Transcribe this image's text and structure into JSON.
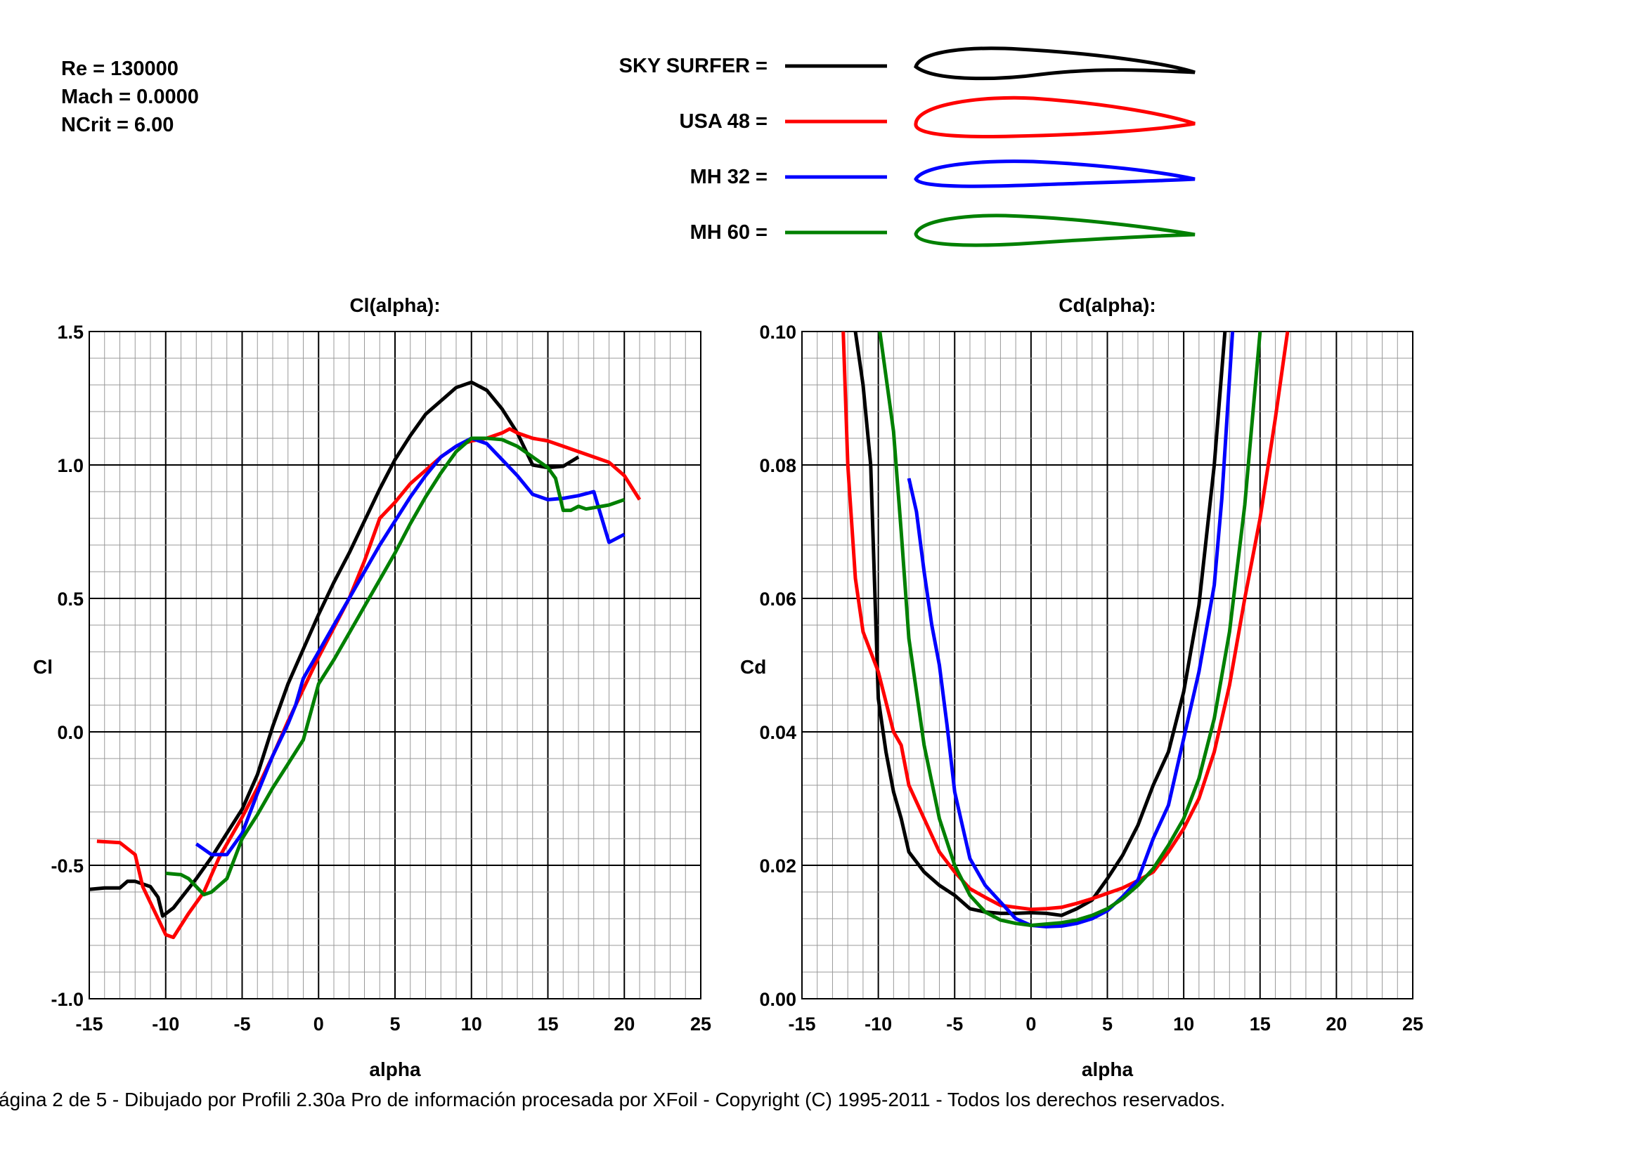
{
  "params": {
    "re": "Re = 130000",
    "mach": "Mach = 0.0000",
    "ncrit": "NCrit = 6.00"
  },
  "legend": [
    {
      "label": "SKY SURFER =",
      "color": "#000000"
    },
    {
      "label": "USA 48 =",
      "color": "#ff0000"
    },
    {
      "label": "MH 32 =",
      "color": "#0000ff"
    },
    {
      "label": "MH 60 =",
      "color": "#008000"
    }
  ],
  "footer": "ágina 2 de 5 - Dibujado por Profili 2.30a Pro de información procesada por XFoil - Copyright (C) 1995-2011 - Todos los derechos reservados.",
  "chart_data": [
    {
      "type": "line",
      "title": "Cl(alpha):",
      "xlabel": "alpha",
      "ylabel": "Cl",
      "xlim": [
        -15,
        25
      ],
      "ylim": [
        -1.0,
        1.5
      ],
      "xticks": [
        "-15",
        "-10",
        "-5",
        "0",
        "5",
        "10",
        "15",
        "20",
        "25"
      ],
      "yticks": [
        "-1.0",
        "-0.5",
        "0.0",
        "0.5",
        "1.0",
        "1.5"
      ],
      "grid": true,
      "series": [
        {
          "name": "SKY SURFER",
          "color": "#000000",
          "points": [
            [
              -15,
              -0.59
            ],
            [
              -14,
              -0.585
            ],
            [
              -13,
              -0.585
            ],
            [
              -12.5,
              -0.56
            ],
            [
              -12,
              -0.56
            ],
            [
              -11,
              -0.58
            ],
            [
              -10.5,
              -0.62
            ],
            [
              -10.2,
              -0.69
            ],
            [
              -9.5,
              -0.66
            ],
            [
              -8,
              -0.55
            ],
            [
              -7,
              -0.47
            ],
            [
              -6,
              -0.38
            ],
            [
              -5,
              -0.29
            ],
            [
              -4,
              -0.16
            ],
            [
              -3,
              0.02
            ],
            [
              -2,
              0.18
            ],
            [
              -1,
              0.31
            ],
            [
              0,
              0.44
            ],
            [
              1,
              0.56
            ],
            [
              2,
              0.67
            ],
            [
              3,
              0.79
            ],
            [
              4,
              0.91
            ],
            [
              5,
              1.02
            ],
            [
              6,
              1.11
            ],
            [
              7,
              1.19
            ],
            [
              8,
              1.24
            ],
            [
              9,
              1.29
            ],
            [
              10,
              1.31
            ],
            [
              11,
              1.28
            ],
            [
              12,
              1.21
            ],
            [
              13,
              1.12
            ],
            [
              14,
              1.0
            ],
            [
              15,
              0.99
            ],
            [
              16,
              0.995
            ],
            [
              17,
              1.03
            ]
          ]
        },
        {
          "name": "USA 48",
          "color": "#ff0000",
          "points": [
            [
              -14.5,
              -0.41
            ],
            [
              -13,
              -0.415
            ],
            [
              -12,
              -0.46
            ],
            [
              -11.5,
              -0.58
            ],
            [
              -10.5,
              -0.7
            ],
            [
              -10,
              -0.76
            ],
            [
              -9.5,
              -0.77
            ],
            [
              -8.5,
              -0.68
            ],
            [
              -7.5,
              -0.6
            ],
            [
              -6.5,
              -0.47
            ],
            [
              -5.5,
              -0.37
            ],
            [
              -5,
              -0.32
            ],
            [
              -4,
              -0.21
            ],
            [
              -3,
              -0.09
            ],
            [
              -2,
              0.04
            ],
            [
              -1,
              0.16
            ],
            [
              0,
              0.28
            ],
            [
              1,
              0.39
            ],
            [
              2,
              0.5
            ],
            [
              3,
              0.64
            ],
            [
              4,
              0.8
            ],
            [
              5,
              0.86
            ],
            [
              6,
              0.93
            ],
            [
              7,
              0.98
            ],
            [
              8,
              1.03
            ],
            [
              9,
              1.07
            ],
            [
              10,
              1.09
            ],
            [
              11,
              1.1
            ],
            [
              12,
              1.12
            ],
            [
              12.5,
              1.135
            ],
            [
              13,
              1.12
            ],
            [
              14,
              1.1
            ],
            [
              15,
              1.09
            ],
            [
              16,
              1.07
            ],
            [
              17,
              1.05
            ],
            [
              18,
              1.03
            ],
            [
              19,
              1.01
            ],
            [
              20,
              0.96
            ],
            [
              21,
              0.87
            ]
          ]
        },
        {
          "name": "MH 32",
          "color": "#0000ff",
          "points": [
            [
              -8,
              -0.42
            ],
            [
              -7,
              -0.46
            ],
            [
              -6,
              -0.46
            ],
            [
              -5,
              -0.38
            ],
            [
              -4,
              -0.23
            ],
            [
              -3,
              -0.09
            ],
            [
              -2,
              0.03
            ],
            [
              -1.5,
              0.1
            ],
            [
              -1,
              0.2
            ],
            [
              0,
              0.3
            ],
            [
              1,
              0.4
            ],
            [
              2,
              0.5
            ],
            [
              3,
              0.6
            ],
            [
              4,
              0.7
            ],
            [
              5,
              0.79
            ],
            [
              6,
              0.88
            ],
            [
              7,
              0.96
            ],
            [
              8,
              1.03
            ],
            [
              9,
              1.07
            ],
            [
              10,
              1.1
            ],
            [
              11,
              1.08
            ],
            [
              12,
              1.02
            ],
            [
              13,
              0.96
            ],
            [
              14,
              0.89
            ],
            [
              15,
              0.87
            ],
            [
              16,
              0.875
            ],
            [
              17,
              0.885
            ],
            [
              18,
              0.9
            ],
            [
              19,
              0.71
            ],
            [
              20,
              0.74
            ]
          ]
        },
        {
          "name": "MH 60",
          "color": "#008000",
          "points": [
            [
              -10,
              -0.53
            ],
            [
              -9,
              -0.535
            ],
            [
              -8.5,
              -0.55
            ],
            [
              -7.5,
              -0.61
            ],
            [
              -7,
              -0.6
            ],
            [
              -6,
              -0.55
            ],
            [
              -5,
              -0.4
            ],
            [
              -4,
              -0.31
            ],
            [
              -3,
              -0.21
            ],
            [
              -2,
              -0.12
            ],
            [
              -1,
              -0.03
            ],
            [
              0,
              0.18
            ],
            [
              1,
              0.27
            ],
            [
              2,
              0.37
            ],
            [
              3,
              0.47
            ],
            [
              4,
              0.57
            ],
            [
              5,
              0.67
            ],
            [
              6,
              0.78
            ],
            [
              7,
              0.88
            ],
            [
              8,
              0.97
            ],
            [
              9,
              1.05
            ],
            [
              10,
              1.1
            ],
            [
              11,
              1.1
            ],
            [
              12,
              1.095
            ],
            [
              13,
              1.07
            ],
            [
              14,
              1.03
            ],
            [
              15,
              0.99
            ],
            [
              15.5,
              0.95
            ],
            [
              16,
              0.83
            ],
            [
              16.5,
              0.83
            ],
            [
              17,
              0.845
            ],
            [
              17.5,
              0.835
            ],
            [
              18,
              0.84
            ],
            [
              19,
              0.85
            ],
            [
              20,
              0.87
            ]
          ]
        }
      ]
    },
    {
      "type": "line",
      "title": "Cd(alpha):",
      "xlabel": "alpha",
      "ylabel": "Cd",
      "xlim": [
        -15,
        25
      ],
      "ylim": [
        0.0,
        0.1
      ],
      "xticks": [
        "-15",
        "-10",
        "-5",
        "0",
        "5",
        "10",
        "15",
        "20",
        "25"
      ],
      "yticks": [
        "0.00",
        "0.02",
        "0.04",
        "0.06",
        "0.08",
        "0.10"
      ],
      "grid": true,
      "series": [
        {
          "name": "SKY SURFER",
          "color": "#000000",
          "points": [
            [
              -11.5,
              0.1
            ],
            [
              -11,
              0.092
            ],
            [
              -10.5,
              0.08
            ],
            [
              -10,
              0.045
            ],
            [
              -9.5,
              0.037
            ],
            [
              -9,
              0.031
            ],
            [
              -8.5,
              0.027
            ],
            [
              -8,
              0.022
            ],
            [
              -7,
              0.019
            ],
            [
              -6,
              0.017
            ],
            [
              -5,
              0.0155
            ],
            [
              -4,
              0.0135
            ],
            [
              -3,
              0.013
            ],
            [
              -2,
              0.0128
            ],
            [
              -1,
              0.0128
            ],
            [
              0,
              0.0129
            ],
            [
              1,
              0.0128
            ],
            [
              2,
              0.0125
            ],
            [
              3,
              0.0135
            ],
            [
              4,
              0.0148
            ],
            [
              5,
              0.018
            ],
            [
              6,
              0.0215
            ],
            [
              7,
              0.026
            ],
            [
              8,
              0.032
            ],
            [
              9,
              0.037
            ],
            [
              10,
              0.046
            ],
            [
              11,
              0.059
            ],
            [
              12,
              0.08
            ],
            [
              12.7,
              0.1
            ]
          ]
        },
        {
          "name": "USA 48",
          "color": "#ff0000",
          "points": [
            [
              -12.3,
              0.1
            ],
            [
              -12,
              0.08
            ],
            [
              -11.5,
              0.063
            ],
            [
              -11,
              0.055
            ],
            [
              -10,
              0.049
            ],
            [
              -9,
              0.04
            ],
            [
              -8.5,
              0.038
            ],
            [
              -8,
              0.032
            ],
            [
              -7,
              0.027
            ],
            [
              -6,
              0.022
            ],
            [
              -5,
              0.019
            ],
            [
              -4,
              0.0165
            ],
            [
              -3,
              0.0152
            ],
            [
              -2,
              0.014
            ],
            [
              -1,
              0.0137
            ],
            [
              0,
              0.0134
            ],
            [
              1,
              0.0135
            ],
            [
              2,
              0.0137
            ],
            [
              3,
              0.0143
            ],
            [
              4,
              0.015
            ],
            [
              5,
              0.0158
            ],
            [
              6,
              0.0166
            ],
            [
              7,
              0.0177
            ],
            [
              8,
              0.019
            ],
            [
              9,
              0.022
            ],
            [
              10,
              0.0255
            ],
            [
              11,
              0.03
            ],
            [
              12,
              0.037
            ],
            [
              13,
              0.047
            ],
            [
              14,
              0.06
            ],
            [
              15,
              0.072
            ],
            [
              16,
              0.087
            ],
            [
              16.8,
              0.1
            ]
          ]
        },
        {
          "name": "MH 32",
          "color": "#0000ff",
          "points": [
            [
              -8,
              0.078
            ],
            [
              -7.5,
              0.073
            ],
            [
              -7,
              0.064
            ],
            [
              -6.5,
              0.056
            ],
            [
              -6,
              0.05
            ],
            [
              -5.5,
              0.041
            ],
            [
              -5,
              0.031
            ],
            [
              -4.5,
              0.026
            ],
            [
              -4,
              0.021
            ],
            [
              -3,
              0.017
            ],
            [
              -2,
              0.0145
            ],
            [
              -1,
              0.012
            ],
            [
              0,
              0.011
            ],
            [
              1,
              0.0108
            ],
            [
              2,
              0.0109
            ],
            [
              3,
              0.0113
            ],
            [
              4,
              0.012
            ],
            [
              5,
              0.0132
            ],
            [
              6,
              0.0153
            ],
            [
              7,
              0.0178
            ],
            [
              8,
              0.024
            ],
            [
              9,
              0.029
            ],
            [
              10,
              0.039
            ],
            [
              11,
              0.049
            ],
            [
              12,
              0.062
            ],
            [
              12.5,
              0.075
            ],
            [
              13.2,
              0.1
            ]
          ]
        },
        {
          "name": "MH 60",
          "color": "#008000",
          "points": [
            [
              -9.9,
              0.1
            ],
            [
              -9,
              0.085
            ],
            [
              -8.5,
              0.07
            ],
            [
              -8,
              0.054
            ],
            [
              -7,
              0.038
            ],
            [
              -6,
              0.027
            ],
            [
              -5,
              0.02
            ],
            [
              -4,
              0.0155
            ],
            [
              -3,
              0.013
            ],
            [
              -2,
              0.0118
            ],
            [
              -1,
              0.0113
            ],
            [
              0,
              0.011
            ],
            [
              1,
              0.0112
            ],
            [
              2,
              0.0114
            ],
            [
              3,
              0.0118
            ],
            [
              4,
              0.0125
            ],
            [
              5,
              0.0135
            ],
            [
              6,
              0.015
            ],
            [
              7,
              0.017
            ],
            [
              8,
              0.0195
            ],
            [
              9,
              0.023
            ],
            [
              10,
              0.027
            ],
            [
              11,
              0.033
            ],
            [
              12,
              0.042
            ],
            [
              13,
              0.055
            ],
            [
              14,
              0.074
            ],
            [
              15,
              0.1
            ]
          ]
        }
      ]
    }
  ]
}
